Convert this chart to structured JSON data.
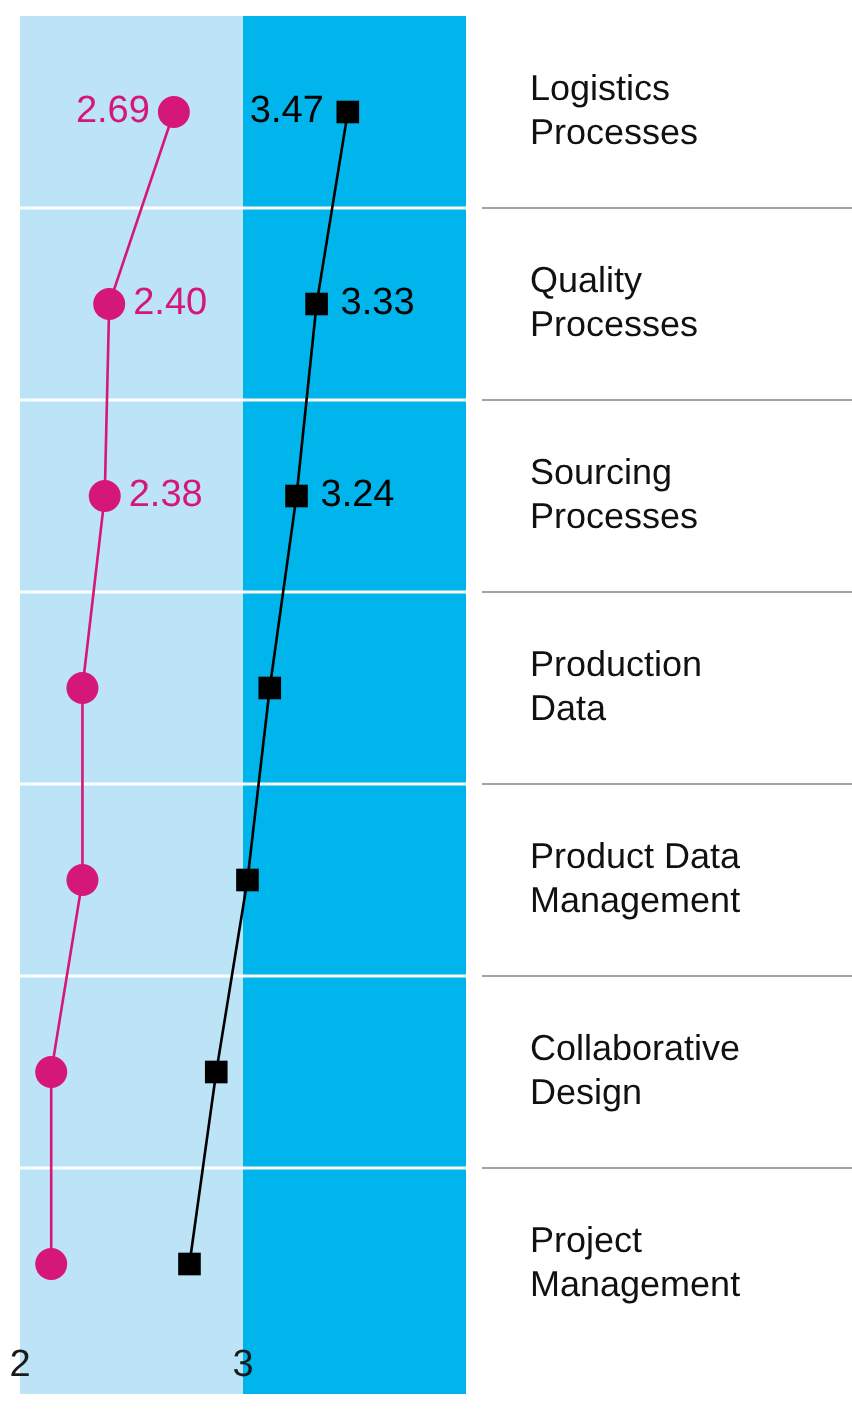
{
  "chart_data": {
    "type": "line",
    "orientation": "horizontal",
    "categories": [
      "Logistics Processes",
      "Quality Processes",
      "Sourcing Processes",
      "Production Data",
      "Product Data Management",
      "Collaborative Design",
      "Project Management"
    ],
    "series": [
      {
        "color": "#d6177a",
        "marker": "circle",
        "values": [
          2.69,
          2.4,
          2.38,
          2.28,
          2.28,
          2.14,
          2.14
        ],
        "value_labels": [
          "2.69",
          "2.40",
          "2.38",
          null,
          null,
          null,
          null
        ]
      },
      {
        "color": "#000000",
        "marker": "square",
        "values": [
          3.47,
          3.33,
          3.24,
          3.12,
          3.02,
          2.88,
          2.76
        ],
        "value_labels": [
          "3.47",
          "3.33",
          "3.24",
          null,
          null,
          null,
          null
        ]
      }
    ],
    "xlim": [
      2,
      4
    ],
    "xticks": [
      2,
      3
    ],
    "bands": [
      {
        "axis": "x",
        "from": 2,
        "to": 3,
        "color": "#bde3f6"
      },
      {
        "axis": "x",
        "from": 3,
        "to": 4,
        "color": "#00b5ec"
      }
    ],
    "grid": "y",
    "legend": false
  }
}
